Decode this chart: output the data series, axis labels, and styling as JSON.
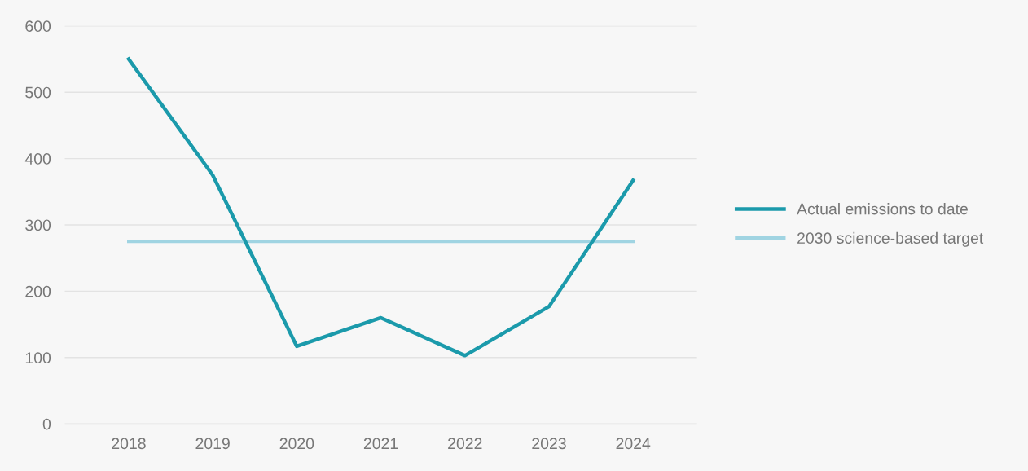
{
  "chart_data": {
    "type": "line",
    "categories": [
      "2018",
      "2019",
      "2020",
      "2021",
      "2022",
      "2023",
      "2024"
    ],
    "series": [
      {
        "name": "Actual emissions to date",
        "color": "#1b9aab",
        "values": [
          550,
          375,
          117,
          160,
          103,
          177,
          367
        ]
      },
      {
        "name": "2030 science-based target",
        "color": "#a0d4e2",
        "values": [
          275,
          275,
          275,
          275,
          275,
          275,
          275
        ]
      }
    ],
    "ylim": [
      0,
      600
    ],
    "yticks": [
      0,
      100,
      200,
      300,
      400,
      500,
      600
    ],
    "grid": "y",
    "legend": "right",
    "marker": "none",
    "line_style": "solid"
  }
}
